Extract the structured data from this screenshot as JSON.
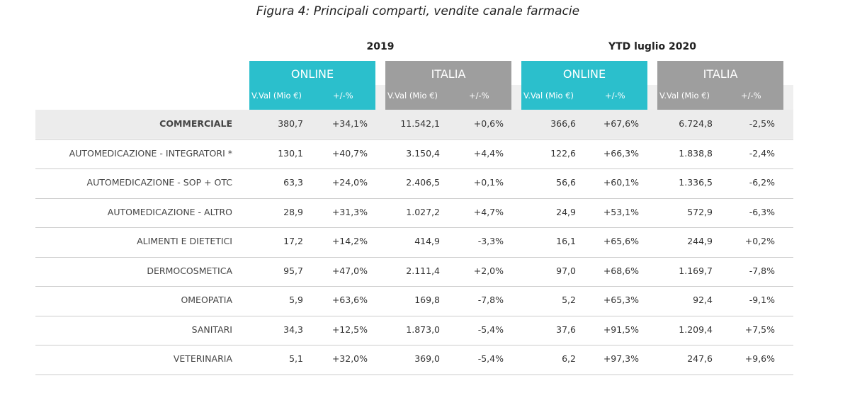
{
  "title": "Figura 4: Principali comparti, vendite canale farmacie",
  "periods": [
    {
      "label": "2019",
      "channels": [
        {
          "label": "ONLINE",
          "subheaders": [
            "V.Val (Mio €)",
            "+/-%"
          ]
        },
        {
          "label": "ITALIA",
          "subheaders": [
            "V.Val (Mio €)",
            "+/-%"
          ]
        }
      ]
    },
    {
      "label": "YTD luglio 2020",
      "channels": [
        {
          "label": "ONLINE",
          "subheaders": [
            "V.Val (Mio €)",
            "+/-%"
          ]
        },
        {
          "label": "ITALIA",
          "subheaders": [
            "V.Val (Mio €)",
            "+/-%"
          ]
        }
      ]
    }
  ],
  "rows": [
    {
      "label": "COMMERCIALE",
      "values": [
        "380,7",
        "+34,1%",
        "11.542,1",
        "+0,6%",
        "366,6",
        "+67,6%",
        "6.724,8",
        "-2,5%"
      ]
    },
    {
      "label": "AUTOMEDICAZIONE - INTEGRATORI *",
      "values": [
        "130,1",
        "+40,7%",
        "3.150,4",
        "+4,4%",
        "122,6",
        "+66,3%",
        "1.838,8",
        "-2,4%"
      ]
    },
    {
      "label": "AUTOMEDICAZIONE - SOP + OTC",
      "values": [
        "63,3",
        "+24,0%",
        "2.406,5",
        "+0,1%",
        "56,6",
        "+60,1%",
        "1.336,5",
        "-6,2%"
      ]
    },
    {
      "label": "AUTOMEDICAZIONE - ALTRO",
      "values": [
        "28,9",
        "+31,3%",
        "1.027,2",
        "+4,7%",
        "24,9",
        "+53,1%",
        "572,9",
        "-6,3%"
      ]
    },
    {
      "label": "ALIMENTI E DIETETICI",
      "values": [
        "17,2",
        "+14,2%",
        "414,9",
        "-3,3%",
        "16,1",
        "+65,6%",
        "244,9",
        "+0,2%"
      ]
    },
    {
      "label": "DERMOCOSMETICA",
      "values": [
        "95,7",
        "+47,0%",
        "2.111,4",
        "+2,0%",
        "97,0",
        "+68,6%",
        "1.169,7",
        "-7,8%"
      ]
    },
    {
      "label": "OMEOPATIA",
      "values": [
        "5,9",
        "+63,6%",
        "169,8",
        "-7,8%",
        "5,2",
        "+65,3%",
        "92,4",
        "-9,1%"
      ]
    },
    {
      "label": "SANITARI",
      "values": [
        "34,3",
        "+12,5%",
        "1.873,0",
        "-5,4%",
        "37,6",
        "+91,5%",
        "1.209,4",
        "+7,5%"
      ]
    },
    {
      "label": "VETERINARIA",
      "values": [
        "5,1",
        "+32,0%",
        "369,0",
        "-5,4%",
        "6,2",
        "+97,3%",
        "247,6",
        "+9,6%"
      ]
    }
  ]
}
